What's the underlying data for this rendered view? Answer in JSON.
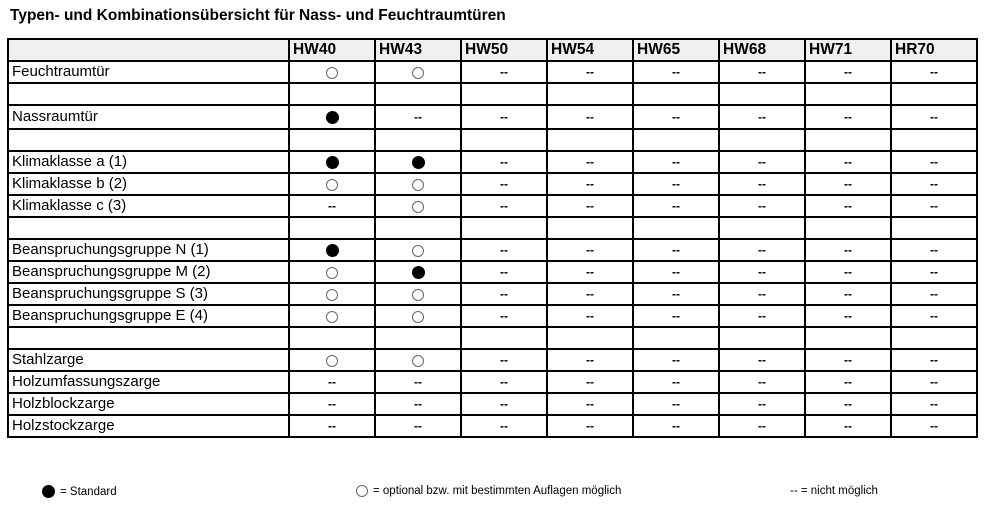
{
  "title": "Typen- und Kombinationsübersicht für Nass- und Feuchtraumtüren",
  "columns": [
    "HW40",
    "HW43",
    "HW50",
    "HW54",
    "HW65",
    "HW68",
    "HW71",
    "HR70"
  ],
  "rows": [
    {
      "label": "Feuchtraumtür",
      "values": [
        "open",
        "open",
        "--",
        "--",
        "--",
        "--",
        "--",
        "--"
      ]
    },
    {
      "label": "",
      "values": [
        "",
        "",
        "",
        "",
        "",
        "",
        "",
        ""
      ]
    },
    {
      "label": "Nassraumtür",
      "values": [
        "full",
        "--",
        "--",
        "--",
        "--",
        "--",
        "--",
        "--"
      ]
    },
    {
      "label": "",
      "values": [
        "",
        "",
        "",
        "",
        "",
        "",
        "",
        ""
      ]
    },
    {
      "label": "Klimaklasse a (1)",
      "values": [
        "full",
        "full",
        "--",
        "--",
        "--",
        "--",
        "--",
        "--"
      ]
    },
    {
      "label": "Klimaklasse b (2)",
      "values": [
        "open",
        "open",
        "--",
        "--",
        "--",
        "--",
        "--",
        "--"
      ]
    },
    {
      "label": "Klimaklasse c (3)",
      "values": [
        "--",
        "open",
        "--",
        "--",
        "--",
        "--",
        "--",
        "--"
      ]
    },
    {
      "label": "",
      "values": [
        "",
        "",
        "",
        "",
        "",
        "",
        "",
        ""
      ]
    },
    {
      "label": "Beanspruchungsgruppe N (1)",
      "values": [
        "full",
        "open",
        "--",
        "--",
        "--",
        "--",
        "--",
        "--"
      ]
    },
    {
      "label": "Beanspruchungsgruppe M (2)",
      "values": [
        "open",
        "full",
        "--",
        "--",
        "--",
        "--",
        "--",
        "--"
      ]
    },
    {
      "label": "Beanspruchungsgruppe S (3)",
      "values": [
        "open",
        "open",
        "--",
        "--",
        "--",
        "--",
        "--",
        "--"
      ]
    },
    {
      "label": "Beanspruchungsgruppe E (4)",
      "values": [
        "open",
        "open",
        "--",
        "--",
        "--",
        "--",
        "--",
        "--"
      ]
    },
    {
      "label": "",
      "values": [
        "",
        "",
        "",
        "",
        "",
        "",
        "",
        ""
      ]
    },
    {
      "label": "Stahlzarge",
      "values": [
        "open",
        "open",
        "--",
        "--",
        "--",
        "--",
        "--",
        "--"
      ]
    },
    {
      "label": "Holzumfassungszarge",
      "values": [
        "--",
        "--",
        "--",
        "--",
        "--",
        "--",
        "--",
        "--"
      ]
    },
    {
      "label": "Holzblockzarge",
      "values": [
        "--",
        "--",
        "--",
        "--",
        "--",
        "--",
        "--",
        "--"
      ]
    },
    {
      "label": "Holzstockzarge",
      "values": [
        "--",
        "--",
        "--",
        "--",
        "--",
        "--",
        "--",
        "--"
      ]
    }
  ],
  "legend": {
    "standard": "= Standard",
    "optional": "= optional bzw. mit bestimmten Auflagen möglich",
    "not_possible": "-- = nicht möglich"
  }
}
